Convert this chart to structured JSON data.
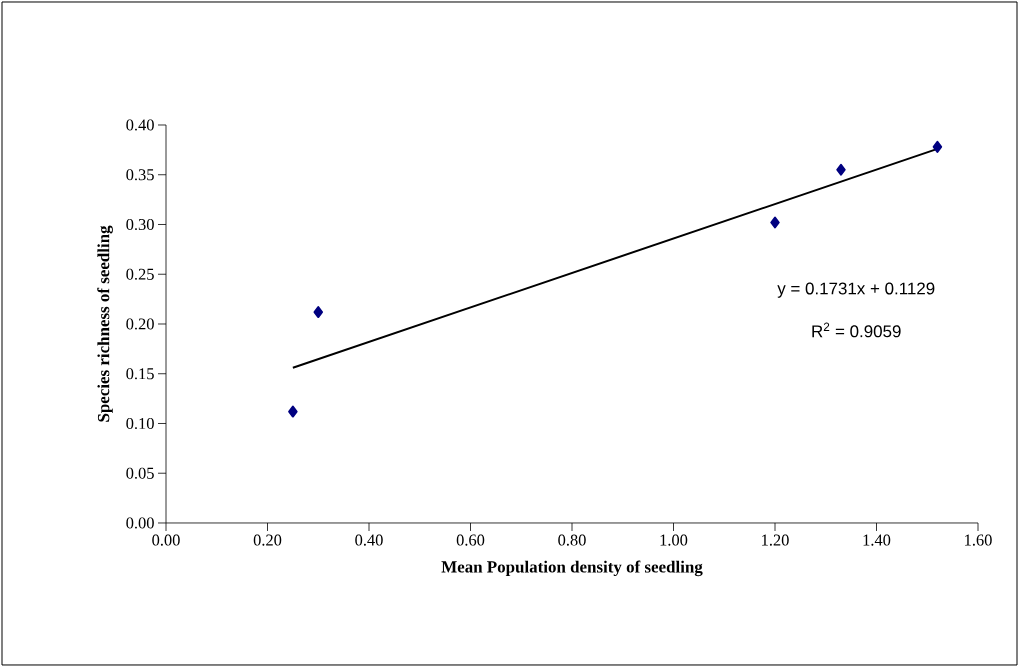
{
  "chart_data": {
    "type": "scatter",
    "xlabel": "Mean Population density of seedling",
    "ylabel": "Species richness of seedling",
    "xlim": [
      0,
      1.6
    ],
    "ylim": [
      0,
      0.4
    ],
    "xticks": [
      {
        "value": 0,
        "label": "0.00"
      },
      {
        "value": 0.2,
        "label": "0.20"
      },
      {
        "value": 0.4,
        "label": "0.40"
      },
      {
        "value": 0.6,
        "label": "0.60"
      },
      {
        "value": 0.8,
        "label": "0.80"
      },
      {
        "value": 1.0,
        "label": "1.00"
      },
      {
        "value": 1.2,
        "label": "1.20"
      },
      {
        "value": 1.4,
        "label": "1.40"
      },
      {
        "value": 1.6,
        "label": "1.60"
      }
    ],
    "yticks": [
      {
        "value": 0,
        "label": "0.00"
      },
      {
        "value": 0.05,
        "label": "0.05"
      },
      {
        "value": 0.1,
        "label": "0.10"
      },
      {
        "value": 0.15,
        "label": "0.15"
      },
      {
        "value": 0.2,
        "label": "0.20"
      },
      {
        "value": 0.25,
        "label": "0.25"
      },
      {
        "value": 0.3,
        "label": "0.30"
      },
      {
        "value": 0.35,
        "label": "0.35"
      },
      {
        "value": 0.4,
        "label": "0.40"
      }
    ],
    "series": [
      {
        "color": "#000080",
        "marker": "diamond",
        "x": [
          0.25,
          0.3,
          1.2,
          1.33,
          1.52
        ],
        "values": [
          0.112,
          0.212,
          0.302,
          0.355,
          0.378
        ]
      },
      {
        "type": "line",
        "color": "#000000",
        "marker": "none",
        "line_style": "solid",
        "x": [
          0.25,
          1.52
        ],
        "values": [
          0.156,
          0.376
        ]
      }
    ],
    "annotations": [
      "y = 0.1731x + 0.1129",
      "R$^{2}$ = 0.9059"
    ],
    "grid": false
  }
}
